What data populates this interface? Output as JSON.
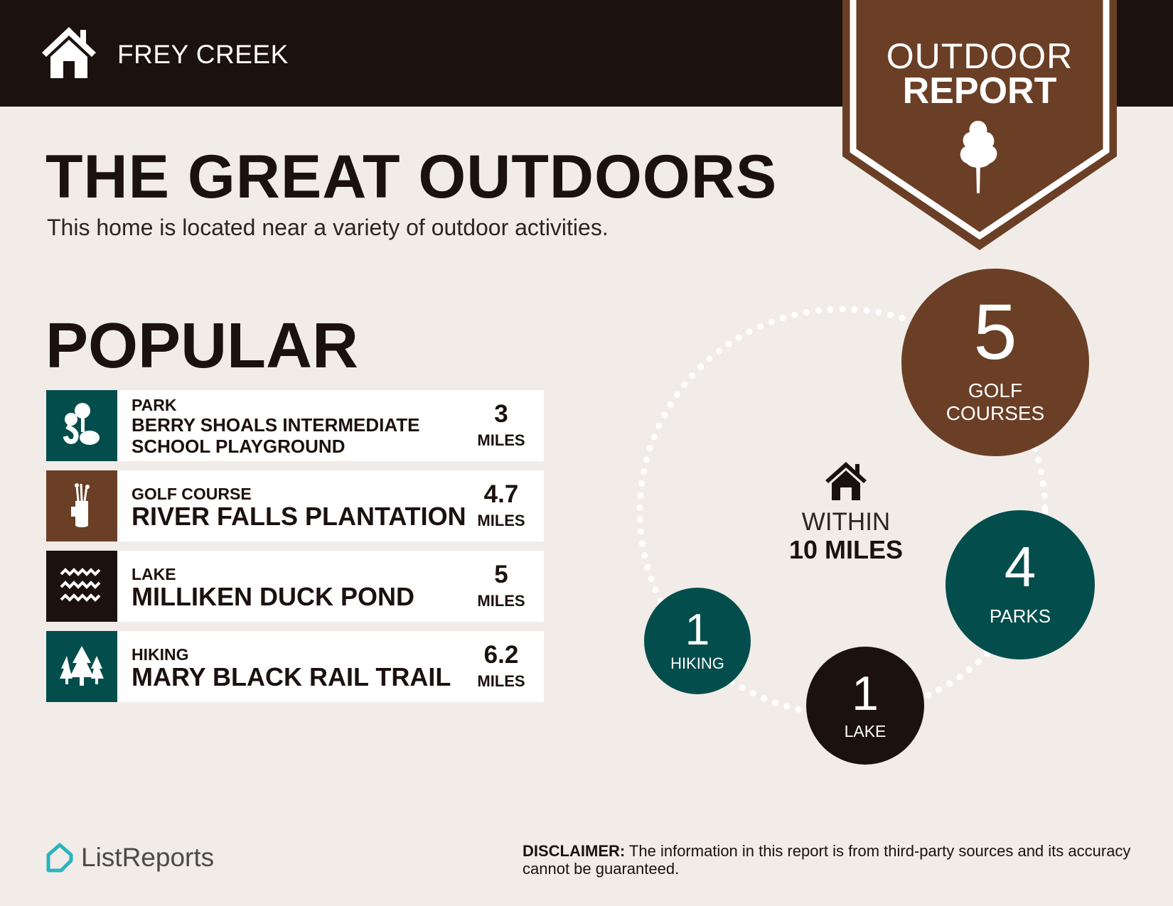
{
  "header": {
    "brand": "FREY CREEK",
    "home_icon": "house-icon"
  },
  "banner": {
    "line1": "OUTDOOR",
    "line2": "REPORT",
    "icon": "tree-icon"
  },
  "title": "THE GREAT OUTDOORS",
  "subtitle": "This home is located near a variety of outdoor activities.",
  "popular": {
    "heading": "POPULAR",
    "items": [
      {
        "category": "PARK",
        "name": "BERRY SHOALS INTERMEDIATE SCHOOL PLAYGROUND",
        "name_line1": "BERRY SHOALS INTERMEDIATE",
        "name_line2": "SCHOOL PLAYGROUND",
        "distance": "3",
        "unit": "MILES",
        "icon": "park-icon",
        "color": "#034e4c"
      },
      {
        "category": "GOLF COURSE",
        "name": "RIVER FALLS PLANTATION",
        "distance": "4.7",
        "unit": "MILES",
        "icon": "golf-bag-icon",
        "color": "#6b3f26"
      },
      {
        "category": "LAKE",
        "name": "MILLIKEN DUCK POND",
        "distance": "5",
        "unit": "MILES",
        "icon": "waves-icon",
        "color": "#1b110e"
      },
      {
        "category": "HIKING",
        "name": "MARY BLACK RAIL TRAIL",
        "distance": "6.2",
        "unit": "MILES",
        "icon": "pine-trees-icon",
        "color": "#034e4c"
      }
    ]
  },
  "summary": {
    "within_line1": "WITHIN",
    "within_line2": "10 MILES",
    "counts": [
      {
        "count": "5",
        "label1": "GOLF",
        "label2": "COURSES",
        "color": "#6b3f26"
      },
      {
        "count": "4",
        "label1": "PARKS",
        "color": "#034e4c"
      },
      {
        "count": "1",
        "label1": "LAKE",
        "color": "#1b110e"
      },
      {
        "count": "1",
        "label1": "HIKING",
        "color": "#034e4c"
      }
    ]
  },
  "footer": {
    "logo": "ListReports",
    "disclaimer_label": "DISCLAIMER:",
    "disclaimer_text": " The information in this report is from third-party sources and its accuracy cannot be guaranteed."
  },
  "colors": {
    "dark": "#1b110e",
    "brown": "#6b3f26",
    "teal": "#034e4c",
    "background": "#f1ece8",
    "logo": "#2ab3c0"
  }
}
